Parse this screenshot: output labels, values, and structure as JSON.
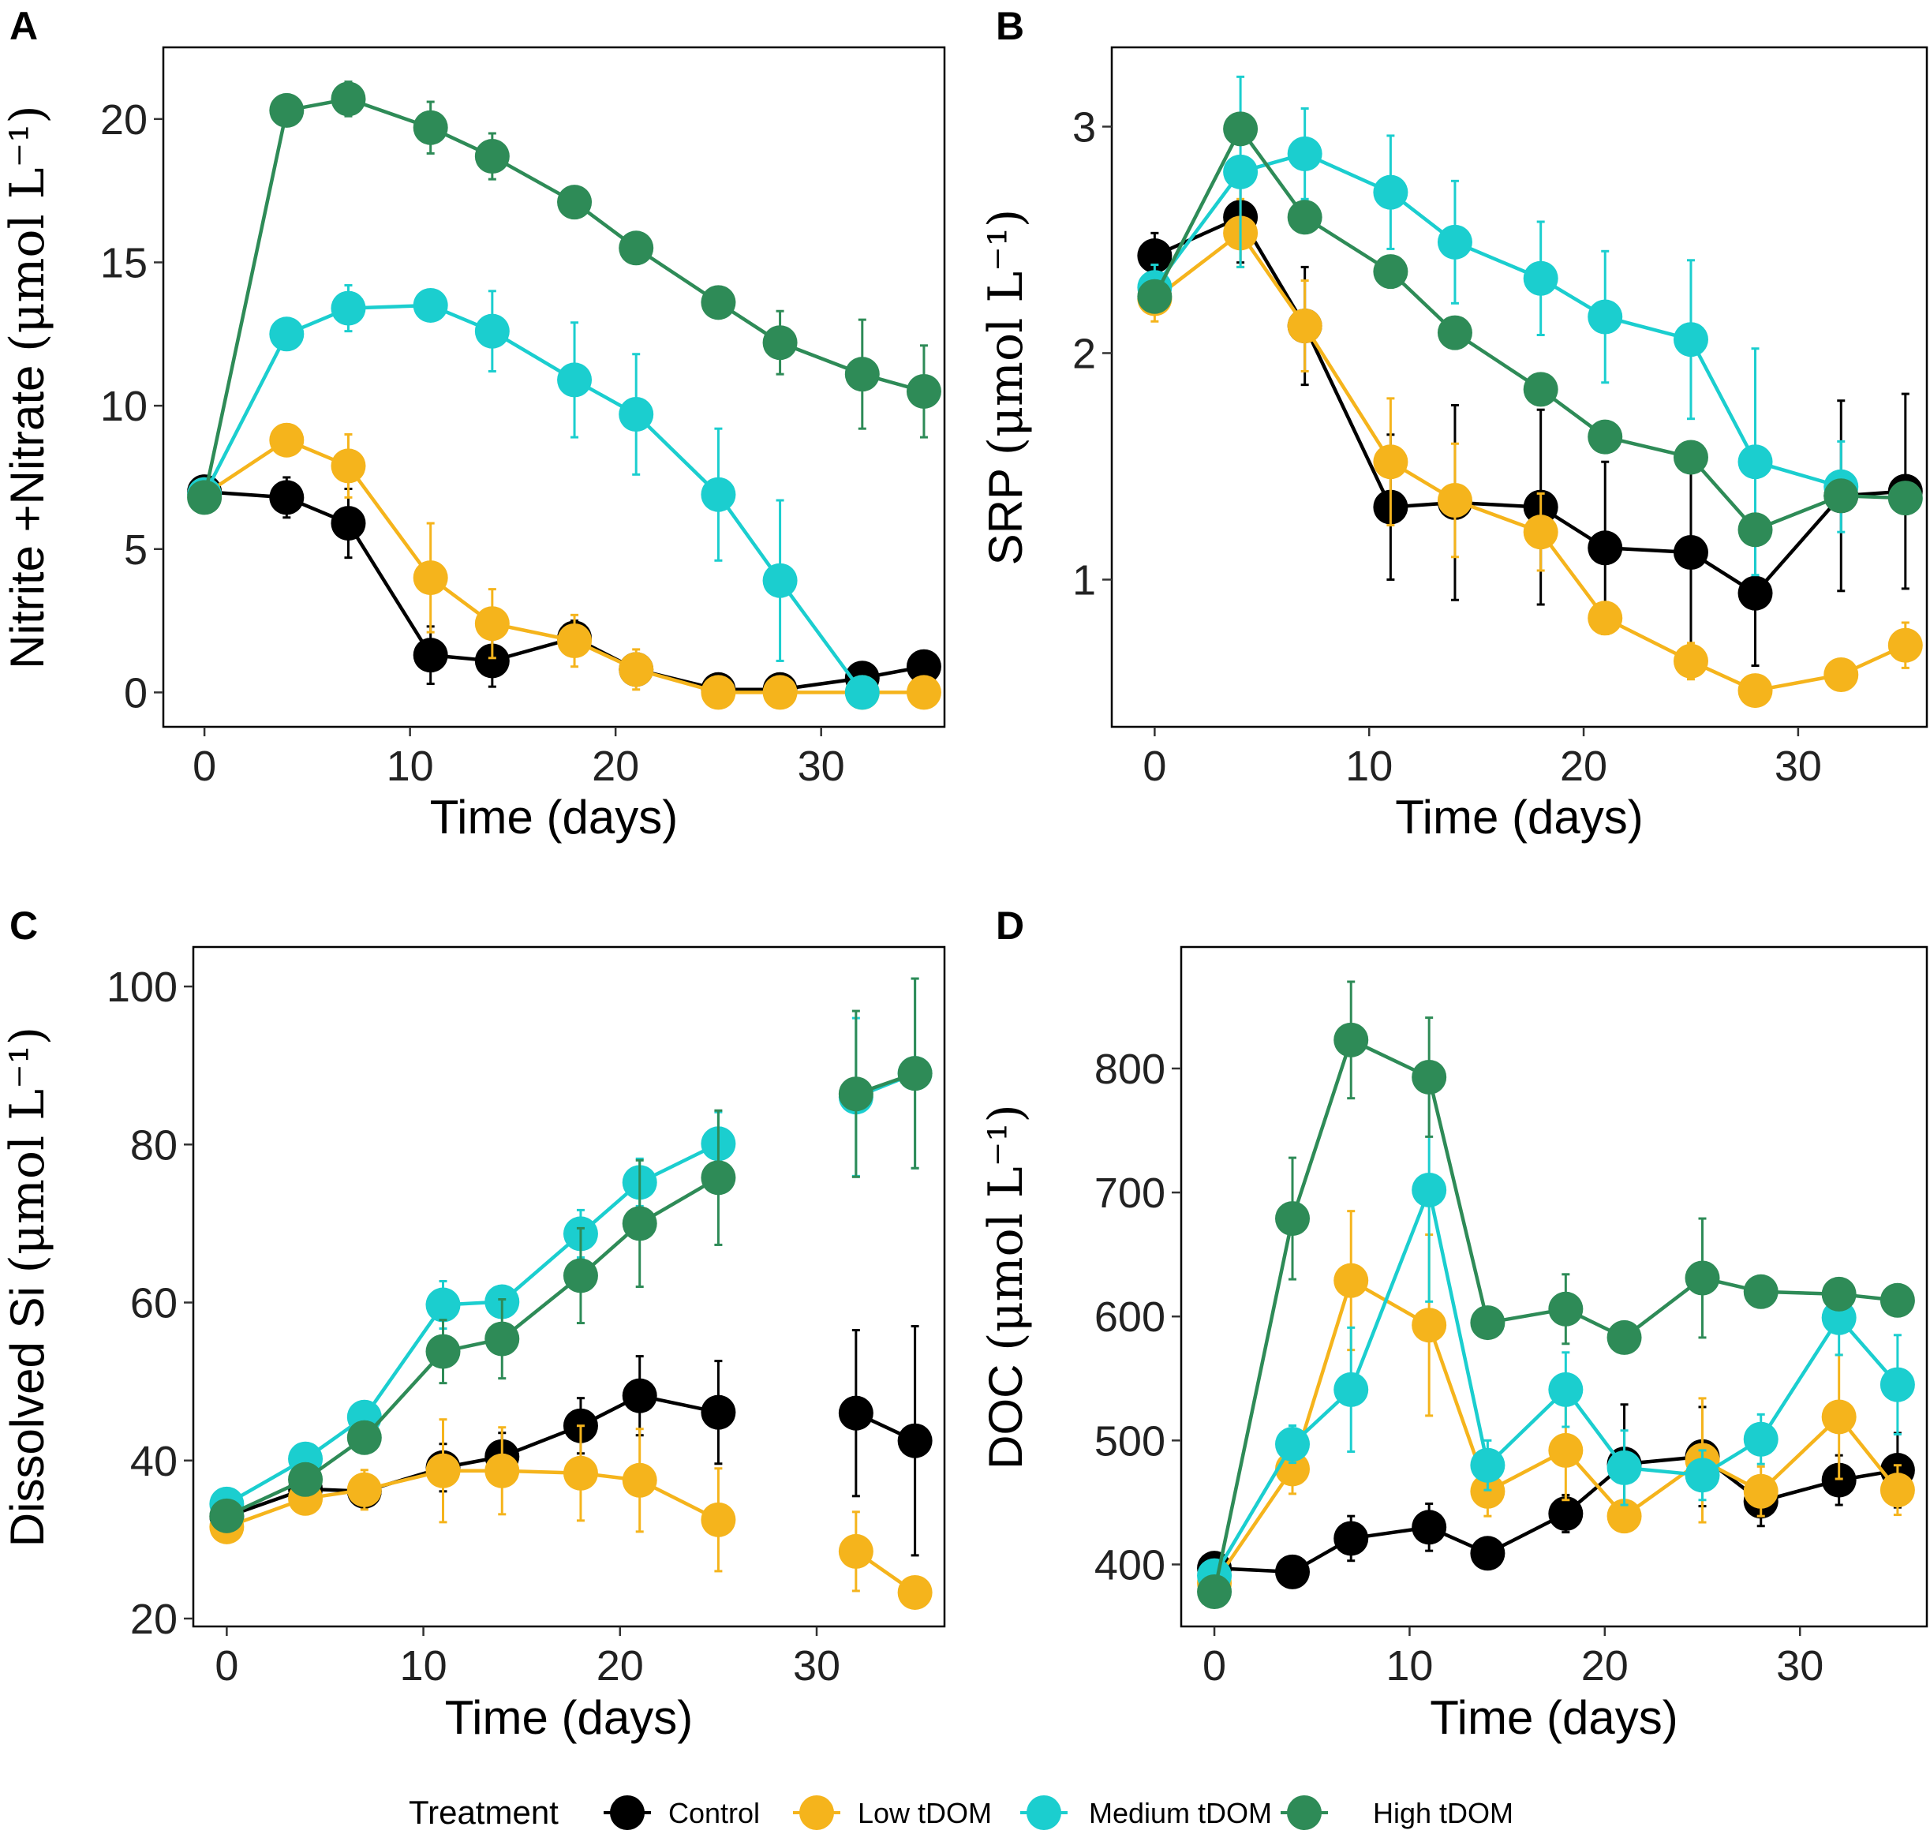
{
  "chart_data": [
    {
      "type": "line",
      "panel": "A",
      "ylabel": "Nitrite +Nitrate",
      "yunit": "(μmol L⁻¹)",
      "xlabel": "Time (days)",
      "xlim": [
        -2,
        36
      ],
      "ylim": [
        -1.2,
        22.5
      ],
      "xticks": [
        0,
        10,
        20,
        30
      ],
      "yticks": [
        0,
        5,
        10,
        15,
        20
      ],
      "x": [
        0,
        4,
        7,
        11,
        14,
        18,
        21,
        25,
        28,
        32,
        35
      ],
      "series": [
        {
          "name": "Control",
          "values": [
            7.0,
            6.8,
            5.9,
            1.3,
            1.1,
            1.9,
            0.8,
            0.1,
            0.1,
            0.5,
            0.9
          ],
          "err": [
            0.3,
            0.7,
            1.2,
            1.0,
            0.9,
            0.6,
            0.4,
            0.2,
            0.2,
            0.3,
            0.4
          ]
        },
        {
          "name": "Low tDOM",
          "values": [
            6.9,
            8.8,
            7.9,
            4.0,
            2.4,
            1.8,
            0.8,
            0.0,
            0.0,
            0.0,
            0.0
          ],
          "err": [
            0.3,
            0.4,
            1.1,
            1.9,
            1.2,
            0.9,
            0.7,
            0.2,
            0.2,
            0.2,
            0.2
          ]
        },
        {
          "name": "Medium tDOM",
          "values": [
            6.9,
            12.5,
            13.4,
            13.5,
            12.6,
            10.9,
            9.7,
            6.9,
            3.9,
            0.0,
            null
          ],
          "err": [
            0.3,
            0.5,
            0.8,
            0.5,
            1.4,
            2.0,
            2.1,
            2.3,
            2.8,
            0.3,
            null
          ]
        },
        {
          "name": "High tDOM",
          "values": [
            6.8,
            20.3,
            20.7,
            19.7,
            18.7,
            17.1,
            15.5,
            13.6,
            12.2,
            11.1,
            10.5
          ],
          "err": [
            0.3,
            0.2,
            0.6,
            0.9,
            0.8,
            0.5,
            0.4,
            0.4,
            1.1,
            1.9,
            1.6
          ]
        }
      ]
    },
    {
      "type": "line",
      "panel": "B",
      "ylabel": "SRP",
      "yunit": "(μmol L⁻¹)",
      "xlabel": "Time (days)",
      "xlim": [
        -2,
        36
      ],
      "ylim": [
        0.35,
        3.35
      ],
      "xticks": [
        0,
        10,
        20,
        30
      ],
      "yticks": [
        1,
        2,
        3
      ],
      "x": [
        0,
        4,
        7,
        11,
        14,
        18,
        21,
        25,
        28,
        32,
        35
      ],
      "series": [
        {
          "name": "Control",
          "values": [
            2.43,
            2.6,
            2.12,
            1.32,
            1.34,
            1.32,
            1.14,
            1.12,
            0.94,
            1.37,
            1.39
          ],
          "err": [
            0.1,
            0.2,
            0.26,
            0.32,
            0.43,
            0.43,
            0.38,
            0.48,
            0.32,
            0.42,
            0.43
          ]
        },
        {
          "name": "Low tDOM",
          "values": [
            2.24,
            2.53,
            2.12,
            1.52,
            1.35,
            1.21,
            0.83,
            0.64,
            0.51,
            0.58,
            0.71
          ],
          "err": [
            0.1,
            0.15,
            0.2,
            0.28,
            0.25,
            0.17,
            0.07,
            0.08,
            0.05,
            0.05,
            0.1
          ]
        },
        {
          "name": "Medium tDOM",
          "values": [
            2.29,
            2.8,
            2.88,
            2.71,
            2.49,
            2.33,
            2.16,
            2.06,
            1.52,
            1.41,
            null
          ],
          "err": [
            0.1,
            0.42,
            0.2,
            0.25,
            0.27,
            0.25,
            0.29,
            0.35,
            0.5,
            0.2,
            null
          ]
        },
        {
          "name": "High tDOM",
          "values": [
            2.25,
            2.99,
            2.6,
            2.36,
            2.09,
            1.84,
            1.63,
            1.54,
            1.22,
            1.37,
            1.36
          ],
          "err": [
            0.05,
            0.05,
            0.05,
            0.05,
            0.05,
            0.05,
            0.05,
            0.05,
            0.05,
            0.05,
            0.05
          ]
        }
      ]
    },
    {
      "type": "line",
      "panel": "C",
      "ylabel": "Dissolved Si",
      "yunit": "(μmol L⁻¹)",
      "xlabel": "Time (days)",
      "xlim": [
        -1.7,
        36.5
      ],
      "ylim": [
        19,
        105
      ],
      "xticks": [
        0,
        10,
        20,
        30
      ],
      "yticks": [
        20,
        40,
        60,
        80,
        100
      ],
      "x": [
        0,
        4,
        7,
        11,
        14,
        18,
        21,
        25,
        28,
        32,
        35
      ],
      "series": [
        {
          "name": "Control",
          "values": [
            32.9,
            36.4,
            36.1,
            39.1,
            40.5,
            44.4,
            48.2,
            46.1,
            null,
            46.0,
            42.5
          ],
          "err": [
            1.0,
            1.5,
            2.0,
            3.0,
            3.0,
            3.5,
            5.0,
            6.5,
            null,
            10.5,
            14.5
          ]
        },
        {
          "name": "Low tDOM",
          "values": [
            31.6,
            35.2,
            36.3,
            38.7,
            38.7,
            38.4,
            37.5,
            32.5,
            null,
            28.5,
            23.3
          ],
          "err": [
            1.0,
            1.5,
            2.5,
            6.5,
            5.5,
            6.0,
            6.5,
            6.5,
            null,
            5.0,
            1.0
          ]
        },
        {
          "name": "Medium tDOM",
          "values": [
            34.5,
            40.2,
            45.5,
            59.7,
            60.1,
            68.7,
            75.2,
            80.1,
            null,
            86.0,
            89.0
          ],
          "err": [
            1.0,
            1.0,
            1.5,
            3.0,
            2.0,
            3.0,
            3.0,
            4.0,
            null,
            10.0,
            12.0
          ]
        },
        {
          "name": "High tDOM",
          "values": [
            33.0,
            37.6,
            42.9,
            53.8,
            55.4,
            63.4,
            70.0,
            75.8,
            null,
            86.4,
            89.0
          ],
          "err": [
            1.5,
            2.0,
            2.0,
            4.0,
            5.0,
            6.0,
            8.0,
            8.5,
            null,
            10.5,
            12.0
          ]
        }
      ]
    },
    {
      "type": "line",
      "panel": "D",
      "ylabel": "DOC",
      "yunit": "(μmol L⁻¹)",
      "xlabel": "Time (days)",
      "xlim": [
        -1.7,
        36.5
      ],
      "ylim": [
        350,
        898
      ],
      "xticks": [
        0,
        10,
        20,
        30
      ],
      "yticks": [
        400,
        500,
        600,
        700,
        800
      ],
      "x": [
        0,
        4,
        7,
        11,
        14,
        18,
        21,
        25,
        28,
        32,
        35
      ],
      "series": [
        {
          "name": "Control",
          "values": [
            397,
            394,
            421,
            430,
            409,
            441,
            481,
            487,
            451,
            468,
            476
          ],
          "err": [
            5,
            5,
            18,
            19,
            5,
            15,
            48,
            40,
            20,
            20,
            30
          ]
        },
        {
          "name": "Low tDOM",
          "values": [
            385,
            477,
            629,
            593,
            459,
            492,
            439,
            484,
            459,
            519,
            460
          ],
          "err": [
            5,
            20,
            56,
            73,
            20,
            40,
            10,
            50,
            20,
            50,
            20
          ]
        },
        {
          "name": "Medium tDOM",
          "values": [
            391,
            497,
            541,
            702,
            480,
            541,
            478,
            472,
            501,
            599,
            545
          ],
          "err": [
            5,
            15,
            50,
            90,
            20,
            30,
            30,
            20,
            20,
            30,
            40
          ]
        },
        {
          "name": "High tDOM",
          "values": [
            378,
            679,
            823,
            793,
            595,
            606,
            583,
            631,
            620,
            618,
            613
          ],
          "err": [
            5,
            49,
            47,
            48,
            5,
            28,
            5,
            48,
            5,
            5,
            5
          ]
        }
      ]
    }
  ],
  "legend": {
    "title": "Treatment",
    "items": [
      {
        "label": "Control",
        "color": "#000000"
      },
      {
        "label": "Low tDOM",
        "color": "#F5B41C"
      },
      {
        "label": "Medium tDOM",
        "color": "#1BCECF"
      },
      {
        "label": "High tDOM",
        "color": "#2E8B57"
      }
    ]
  }
}
